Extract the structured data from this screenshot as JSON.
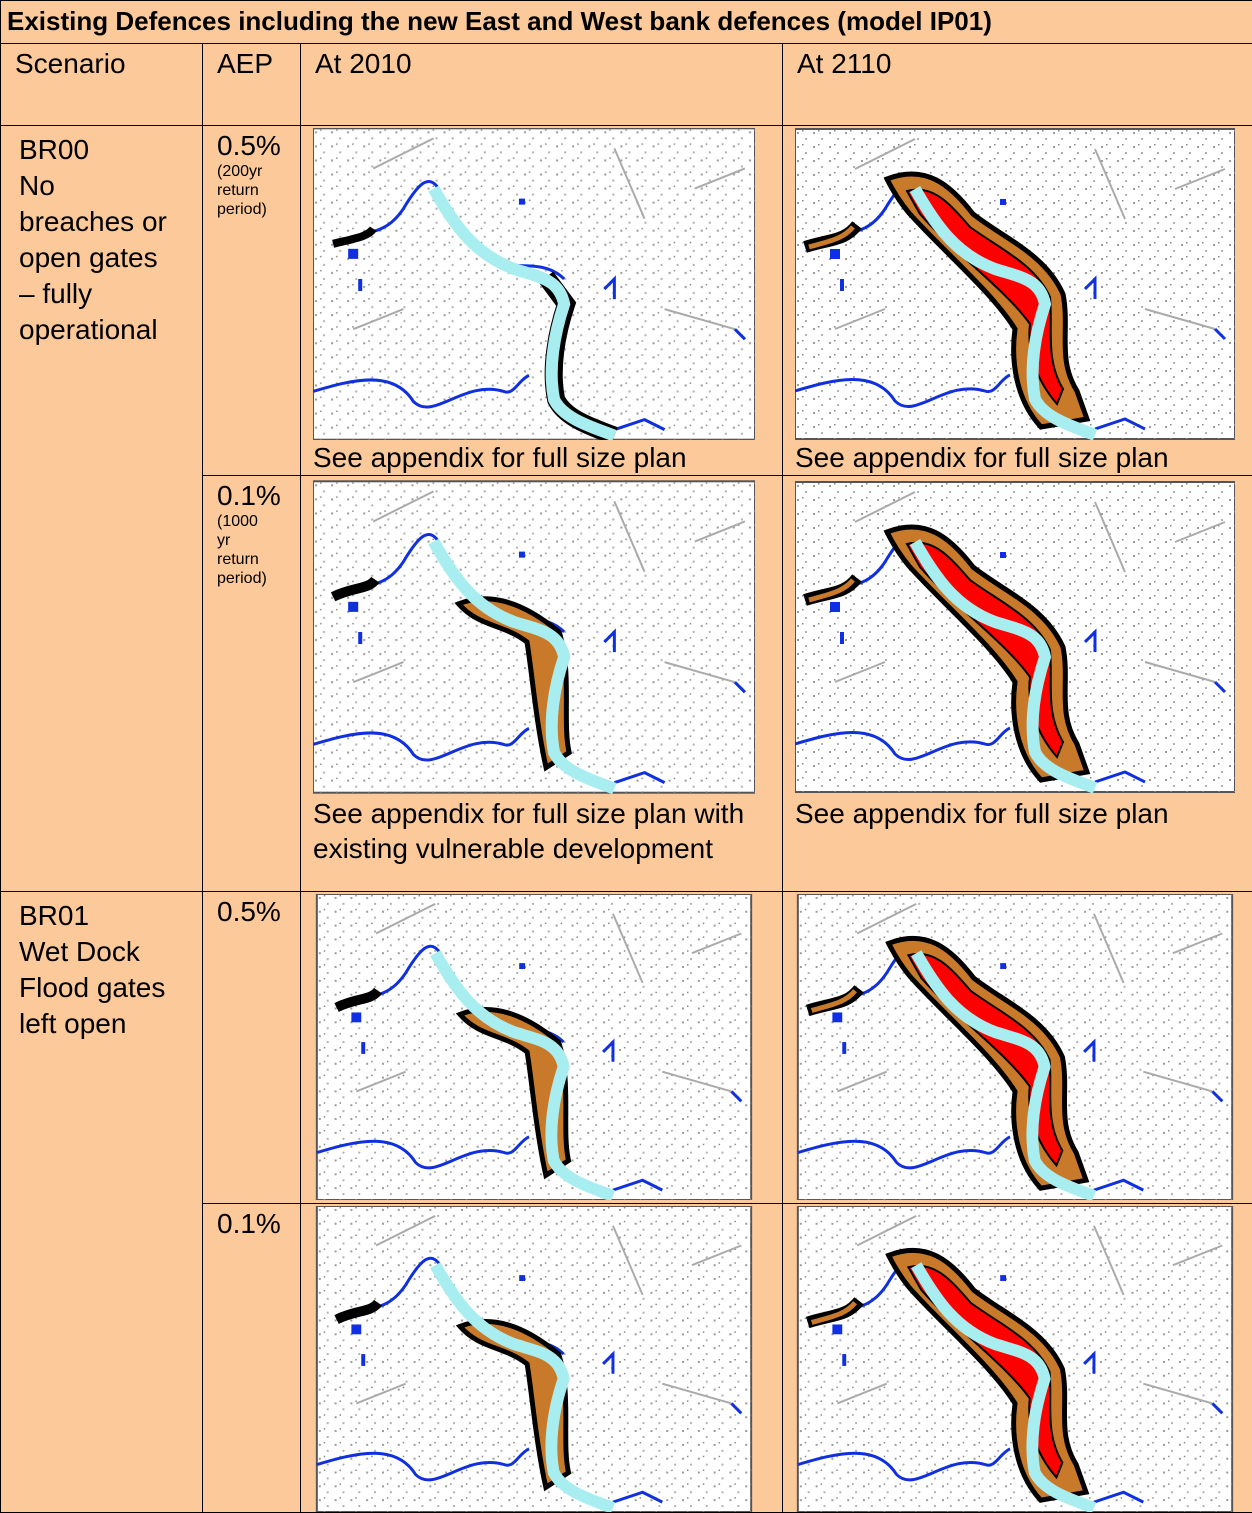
{
  "table": {
    "title": "Existing Defences including the new East and West bank defences (model IP01)",
    "columns": [
      "Scenario",
      "AEP",
      "At 2010",
      "At 2110"
    ],
    "groups": [
      {
        "scenario": [
          "BR00",
          "No",
          "breaches or",
          "open gates",
          "– fully",
          "operational"
        ],
        "rows": [
          {
            "aep": "0.5%",
            "aep_note": "(200yr return period)",
            "captions": [
              "See appendix for full size plan",
              "See appendix for full size plan"
            ]
          },
          {
            "aep": "0.1%",
            "aep_note": "(1000 yr return period)",
            "captions": [
              "See appendix for full size plan with existing vulnerable development",
              "See appendix for full size plan"
            ]
          }
        ]
      },
      {
        "scenario": [
          "BR01",
          "Wet Dock",
          "Flood gates",
          "left open"
        ],
        "rows": [
          {
            "aep": "0.5%"
          },
          {
            "aep": "0.1%"
          }
        ]
      }
    ]
  }
}
